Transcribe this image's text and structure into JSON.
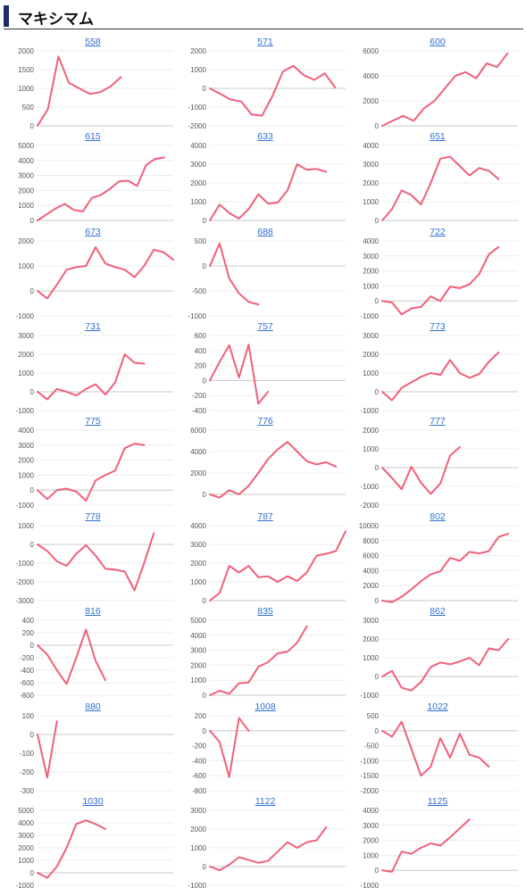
{
  "section_title": "マキシマム",
  "line_color": "#f0607a",
  "chart_data": [
    {
      "type": "line",
      "title": "558",
      "yticks": [
        0,
        500,
        1000,
        1500,
        2000
      ],
      "ylim": [
        0,
        2000
      ],
      "xcount": 14,
      "values": [
        0,
        450,
        1850,
        1150,
        1000,
        850,
        900,
        1050,
        1300
      ]
    },
    {
      "type": "line",
      "title": "571",
      "yticks": [
        -2000,
        -1000,
        0,
        1000,
        2000
      ],
      "ylim": [
        -2000,
        2000
      ],
      "xcount": 14,
      "values": [
        0,
        -300,
        -600,
        -700,
        -1400,
        -1450,
        -400,
        900,
        1200,
        700,
        450,
        800,
        50
      ]
    },
    {
      "type": "line",
      "title": "600",
      "yticks": [
        0,
        2000,
        4000,
        6000
      ],
      "ylim": [
        0,
        6000
      ],
      "xcount": 14,
      "values": [
        0,
        400,
        800,
        400,
        1400,
        2000,
        3000,
        4000,
        4300,
        3800,
        5000,
        4700,
        5800
      ]
    },
    {
      "type": "line",
      "title": "615",
      "yticks": [
        0,
        1000,
        2000,
        3000,
        4000,
        5000
      ],
      "ylim": [
        0,
        5000
      ],
      "xcount": 16,
      "values": [
        0,
        400,
        800,
        1100,
        700,
        600,
        1500,
        1700,
        2100,
        2600,
        2650,
        2300,
        3700,
        4100,
        4200
      ]
    },
    {
      "type": "line",
      "title": "633",
      "yticks": [
        0,
        1000,
        2000,
        3000,
        4000
      ],
      "ylim": [
        0,
        4000
      ],
      "xcount": 15,
      "values": [
        0,
        850,
        400,
        100,
        600,
        1400,
        900,
        950,
        1600,
        3000,
        2700,
        2750,
        2600
      ]
    },
    {
      "type": "line",
      "title": "651",
      "yticks": [
        0,
        1000,
        2000,
        3000,
        4000
      ],
      "ylim": [
        0,
        4000
      ],
      "xcount": 15,
      "values": [
        0,
        600,
        1600,
        1350,
        850,
        2000,
        3300,
        3400,
        2900,
        2400,
        2800,
        2650,
        2200
      ]
    },
    {
      "type": "line",
      "title": "673",
      "yticks": [
        -1000,
        0,
        1000,
        2000
      ],
      "ylim": [
        -1000,
        2000
      ],
      "xcount": 15,
      "values": [
        0,
        -300,
        250,
        850,
        950,
        1000,
        1750,
        1100,
        950,
        850,
        550,
        1000,
        1650,
        1550,
        1250
      ]
    },
    {
      "type": "line",
      "title": "688",
      "yticks": [
        -1000,
        -500,
        0,
        500
      ],
      "ylim": [
        -1000,
        500
      ],
      "xcount": 15,
      "values": [
        0,
        450,
        -250,
        -550,
        -720,
        -770
      ]
    },
    {
      "type": "line",
      "title": "722",
      "yticks": [
        -1000,
        0,
        1000,
        2000,
        3000,
        4000
      ],
      "ylim": [
        -1000,
        4000
      ],
      "xcount": 15,
      "values": [
        0,
        -100,
        -900,
        -500,
        -400,
        300,
        0,
        950,
        850,
        1100,
        1800,
        3100,
        3600
      ]
    },
    {
      "type": "line",
      "title": "731",
      "yticks": [
        -1000,
        0,
        1000,
        2000,
        3000
      ],
      "ylim": [
        -1000,
        3000
      ],
      "xcount": 15,
      "values": [
        0,
        -400,
        150,
        0,
        -200,
        150,
        400,
        -150,
        500,
        2000,
        1550,
        1500
      ]
    },
    {
      "type": "line",
      "title": "757",
      "yticks": [
        -400,
        -200,
        0,
        200,
        400,
        600
      ],
      "ylim": [
        -400,
        600
      ],
      "xcount": 15,
      "values": [
        0,
        250,
        470,
        40,
        480,
        -310,
        -150
      ]
    },
    {
      "type": "line",
      "title": "773",
      "yticks": [
        -1000,
        0,
        1000,
        2000,
        3000
      ],
      "ylim": [
        -1000,
        3000
      ],
      "xcount": 15,
      "values": [
        0,
        -450,
        200,
        500,
        800,
        1000,
        900,
        1700,
        1000,
        750,
        950,
        1600,
        2100
      ]
    },
    {
      "type": "line",
      "title": "775",
      "yticks": [
        -1000,
        0,
        1000,
        2000,
        3000,
        4000
      ],
      "ylim": [
        -1000,
        4000
      ],
      "xcount": 15,
      "values": [
        0,
        -600,
        0,
        100,
        -100,
        -700,
        650,
        1000,
        1300,
        2800,
        3100,
        3000
      ]
    },
    {
      "type": "line",
      "title": "776",
      "yticks": [
        0,
        2000,
        4000,
        6000
      ],
      "ylim": [
        -1000,
        6000
      ],
      "xcount": 15,
      "values": [
        0,
        -300,
        400,
        0,
        800,
        2000,
        3300,
        4200,
        4900,
        4000,
        3100,
        2800,
        3000,
        2600
      ]
    },
    {
      "type": "line",
      "title": "777",
      "yticks": [
        -2000,
        -1000,
        0,
        1000,
        2000
      ],
      "ylim": [
        -2000,
        2000
      ],
      "xcount": 15,
      "values": [
        0,
        -550,
        -1150,
        50,
        -800,
        -1400,
        -850,
        650,
        1100
      ]
    },
    {
      "type": "line",
      "title": "778",
      "yticks": [
        -3000,
        -2000,
        -1000,
        0,
        1000
      ],
      "ylim": [
        -3000,
        1000
      ],
      "xcount": 15,
      "values": [
        0,
        -350,
        -900,
        -1150,
        -500,
        -50,
        -600,
        -1300,
        -1350,
        -1450,
        -2450,
        -1000,
        600
      ]
    },
    {
      "type": "line",
      "title": "787",
      "yticks": [
        0,
        1000,
        2000,
        3000,
        4000
      ],
      "ylim": [
        0,
        4000
      ],
      "xcount": 15,
      "values": [
        0,
        400,
        1850,
        1500,
        1850,
        1250,
        1300,
        1000,
        1300,
        1050,
        1500,
        2400,
        2500,
        2650,
        3700
      ]
    },
    {
      "type": "line",
      "title": "802",
      "yticks": [
        0,
        2000,
        4000,
        6000,
        8000,
        10000
      ],
      "ylim": [
        0,
        10000
      ],
      "xcount": 15,
      "values": [
        0,
        -200,
        500,
        1500,
        2600,
        3500,
        3900,
        5700,
        5300,
        6500,
        6300,
        6600,
        8500,
        8900
      ]
    },
    {
      "type": "line",
      "title": "816",
      "yticks": [
        -800,
        -600,
        -400,
        -200,
        0,
        200,
        400
      ],
      "ylim": [
        -800,
        400
      ],
      "xcount": 15,
      "values": [
        0,
        -150,
        -400,
        -620,
        -200,
        250,
        -250,
        -560
      ]
    },
    {
      "type": "line",
      "title": "835",
      "yticks": [
        0,
        1000,
        2000,
        3000,
        4000,
        5000
      ],
      "ylim": [
        0,
        5000
      ],
      "xcount": 15,
      "values": [
        0,
        300,
        100,
        800,
        850,
        1900,
        2200,
        2800,
        2900,
        3500,
        4600
      ]
    },
    {
      "type": "line",
      "title": "862",
      "yticks": [
        -1000,
        0,
        1000,
        2000,
        3000
      ],
      "ylim": [
        -1000,
        3000
      ],
      "xcount": 15,
      "values": [
        0,
        300,
        -600,
        -750,
        -300,
        500,
        750,
        650,
        800,
        1000,
        600,
        1500,
        1400,
        2000
      ]
    },
    {
      "type": "line",
      "title": "880",
      "yticks": [
        -300,
        -200,
        -100,
        0,
        100
      ],
      "ylim": [
        -300,
        100
      ],
      "xcount": 15,
      "values": [
        0,
        -230,
        70
      ]
    },
    {
      "type": "line",
      "title": "1008",
      "yticks": [
        -800,
        -600,
        -400,
        -200,
        0,
        200
      ],
      "ylim": [
        -800,
        200
      ],
      "xcount": 15,
      "values": [
        0,
        -150,
        -620,
        170,
        0
      ]
    },
    {
      "type": "line",
      "title": "1022",
      "yticks": [
        -2000,
        -1500,
        -1000,
        -500,
        0,
        500
      ],
      "ylim": [
        -2000,
        500
      ],
      "xcount": 15,
      "values": [
        0,
        -200,
        300,
        -600,
        -1500,
        -1200,
        -250,
        -900,
        -100,
        -800,
        -900,
        -1200
      ]
    },
    {
      "type": "line",
      "title": "1030",
      "yticks": [
        -1000,
        0,
        1000,
        2000,
        3000,
        4000,
        5000
      ],
      "ylim": [
        -1000,
        5000
      ],
      "xcount": 15,
      "values": [
        0,
        -400,
        500,
        2000,
        3900,
        4200,
        3900,
        3500
      ]
    },
    {
      "type": "line",
      "title": "1122",
      "yticks": [
        -1000,
        0,
        1000,
        2000,
        3000
      ],
      "ylim": [
        -1000,
        3000
      ],
      "xcount": 15,
      "values": [
        0,
        -200,
        100,
        500,
        350,
        200,
        300,
        800,
        1300,
        1000,
        1300,
        1400,
        2100
      ]
    },
    {
      "type": "line",
      "title": "1125",
      "yticks": [
        -1000,
        0,
        1000,
        2000,
        3000,
        4000
      ],
      "ylim": [
        -1000,
        4000
      ],
      "xcount": 15,
      "values": [
        0,
        -100,
        1250,
        1100,
        1500,
        1800,
        1650,
        2200,
        2800,
        3400
      ]
    }
  ]
}
